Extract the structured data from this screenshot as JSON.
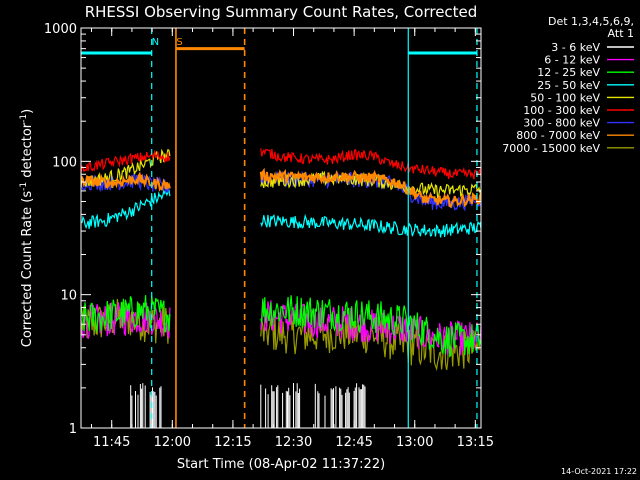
{
  "chart_data": {
    "type": "line",
    "title": "RHESSI Observing Summary Count Rates, Corrected",
    "xlabel": "Start Time (08-Apr-02 11:37:22)",
    "ylabel_main": "Corrected Count Rate (s",
    "ylabel_sup1": "-1",
    "ylabel_mid": " detector",
    "ylabel_sup2": "-1",
    "ylabel_end": ")",
    "y_scale": "log",
    "ylim": [
      1,
      1000
    ],
    "xlim_minutes": [
      0,
      99
    ],
    "y_ticks": [
      {
        "v": 1,
        "label": "1"
      },
      {
        "v": 10,
        "label": "10"
      },
      {
        "v": 100,
        "label": "100"
      },
      {
        "v": 1000,
        "label": "1000"
      }
    ],
    "x_ticks": [
      {
        "t": 7.6,
        "label": "11:45"
      },
      {
        "t": 22.6,
        "label": "12:00"
      },
      {
        "t": 37.6,
        "label": "12:15"
      },
      {
        "t": 52.6,
        "label": "12:30"
      },
      {
        "t": 67.6,
        "label": "12:45"
      },
      {
        "t": 82.6,
        "label": "13:00"
      },
      {
        "t": 97.6,
        "label": "13:15"
      }
    ],
    "legend_header": [
      "Det 1,3,4,5,6,9,",
      "Att 1"
    ],
    "legend_placement": "right",
    "series": [
      {
        "name": "3 - 6 keV",
        "color": "#ffffff"
      },
      {
        "name": "6 - 12 keV",
        "color": "#ff00ff"
      },
      {
        "name": "12 - 25 keV",
        "color": "#00ff00"
      },
      {
        "name": "25 - 50 keV",
        "color": "#00ffff"
      },
      {
        "name": "50 - 100 keV",
        "color": "#e6e600"
      },
      {
        "name": "100 - 300 keV",
        "color": "#ff0000"
      },
      {
        "name": "300 - 800 keV",
        "color": "#3333ff"
      },
      {
        "name": "800 - 7000 keV",
        "color": "#ff8800"
      },
      {
        "name": "7000 - 15000 keV",
        "color": "#999900"
      }
    ],
    "segments": [
      {
        "start": 0,
        "end": 22
      },
      {
        "start": 44.5,
        "end": 99
      }
    ],
    "level_points": {
      "100 - 300 keV": [
        [
          0,
          88
        ],
        [
          6,
          96
        ],
        [
          12,
          104
        ],
        [
          18,
          110
        ],
        [
          22,
          108
        ],
        [
          45,
          118
        ],
        [
          50,
          108
        ],
        [
          57,
          103
        ],
        [
          62,
          103
        ],
        [
          67,
          112
        ],
        [
          72,
          110
        ],
        [
          77,
          95
        ],
        [
          82,
          88
        ],
        [
          86,
          85
        ],
        [
          92,
          80
        ],
        [
          99,
          80
        ]
      ],
      "50 - 100 keV": [
        [
          0,
          70
        ],
        [
          6,
          74
        ],
        [
          12,
          84
        ],
        [
          16,
          96
        ],
        [
          19,
          108
        ],
        [
          22,
          110
        ],
        [
          45,
          70
        ],
        [
          52,
          72
        ],
        [
          60,
          74
        ],
        [
          67,
          74
        ],
        [
          72,
          72
        ],
        [
          77,
          68
        ],
        [
          82,
          63
        ],
        [
          88,
          60
        ],
        [
          94,
          61
        ],
        [
          99,
          62
        ]
      ],
      "800 - 7000 keV": [
        [
          0,
          72
        ],
        [
          8,
          69
        ],
        [
          14,
          74
        ],
        [
          18,
          68
        ],
        [
          22,
          66
        ],
        [
          45,
          78
        ],
        [
          55,
          76
        ],
        [
          65,
          77
        ],
        [
          72,
          75
        ],
        [
          78,
          70
        ],
        [
          85,
          52
        ],
        [
          92,
          50
        ],
        [
          99,
          53
        ]
      ],
      "300 - 800 keV": [
        [
          0,
          70
        ],
        [
          8,
          69
        ],
        [
          14,
          72
        ],
        [
          18,
          66
        ],
        [
          22,
          64
        ],
        [
          45,
          74
        ],
        [
          55,
          73
        ],
        [
          65,
          73
        ],
        [
          72,
          72
        ],
        [
          78,
          66
        ],
        [
          85,
          50
        ],
        [
          92,
          48
        ],
        [
          99,
          52
        ]
      ],
      "25 - 50 keV": [
        [
          0,
          34
        ],
        [
          6,
          36
        ],
        [
          12,
          42
        ],
        [
          18,
          52
        ],
        [
          22,
          58
        ],
        [
          45,
          36
        ],
        [
          55,
          35
        ],
        [
          65,
          34
        ],
        [
          72,
          33
        ],
        [
          80,
          31
        ],
        [
          88,
          30
        ],
        [
          94,
          31
        ],
        [
          99,
          32
        ]
      ],
      "12 - 25 keV": [
        [
          0,
          6.5
        ],
        [
          10,
          7.2
        ],
        [
          16,
          7.6
        ],
        [
          22,
          7.0
        ],
        [
          45,
          7.8
        ],
        [
          60,
          7.4
        ],
        [
          70,
          7.0
        ],
        [
          80,
          6.3
        ],
        [
          90,
          4.6
        ],
        [
          99,
          4.6
        ]
      ],
      "6 - 12 keV": [
        [
          0,
          6.2
        ],
        [
          10,
          6.6
        ],
        [
          16,
          6.8
        ],
        [
          22,
          6.3
        ],
        [
          45,
          7.0
        ],
        [
          55,
          6.4
        ],
        [
          65,
          6.2
        ],
        [
          72,
          5.8
        ],
        [
          80,
          5.6
        ],
        [
          88,
          4.7
        ],
        [
          99,
          4.7
        ]
      ],
      "7000 - 15000 keV": [
        [
          0,
          5.8
        ],
        [
          10,
          6.8
        ],
        [
          18,
          6.0
        ],
        [
          22,
          6.0
        ],
        [
          45,
          5.2
        ],
        [
          55,
          5.0
        ],
        [
          65,
          5.2
        ],
        [
          72,
          5.0
        ],
        [
          80,
          4.2
        ],
        [
          88,
          3.7
        ],
        [
          99,
          3.9
        ]
      ]
    },
    "low_counts": {
      "3 - 6 keV": {
        "value": 1.9,
        "ranges": [
          [
            12,
            21
          ],
          [
            44.5,
            55
          ],
          [
            58,
            71
          ]
        ]
      }
    },
    "attenuator_bars": [
      {
        "t0": 0,
        "t1": 17.5,
        "level": 650,
        "color": "#00ffff"
      },
      {
        "t0": 81,
        "t1": 98,
        "level": 650,
        "color": "#00ffff"
      },
      {
        "t0": 23.5,
        "t1": 40.5,
        "level": 700,
        "color": "#ff8800"
      }
    ],
    "state_lines": [
      {
        "t": 17.5,
        "color": "#00ffff",
        "dash": true
      },
      {
        "t": 81.0,
        "color": "#00ffff",
        "dash": false
      },
      {
        "t": 98.0,
        "color": "#00ffff",
        "dash": true
      },
      {
        "t": 23.5,
        "color": "#ff8800",
        "dash": false
      },
      {
        "t": 40.5,
        "color": "#ff8800",
        "dash": true
      }
    ],
    "markers": [
      {
        "label": "N",
        "t": 18.4,
        "color": "#00ffff"
      },
      {
        "label": "S",
        "t": 24.4,
        "color": "#ff8800"
      }
    ]
  },
  "footer": {
    "timestamp": "14-Oct-2021 17:22"
  }
}
